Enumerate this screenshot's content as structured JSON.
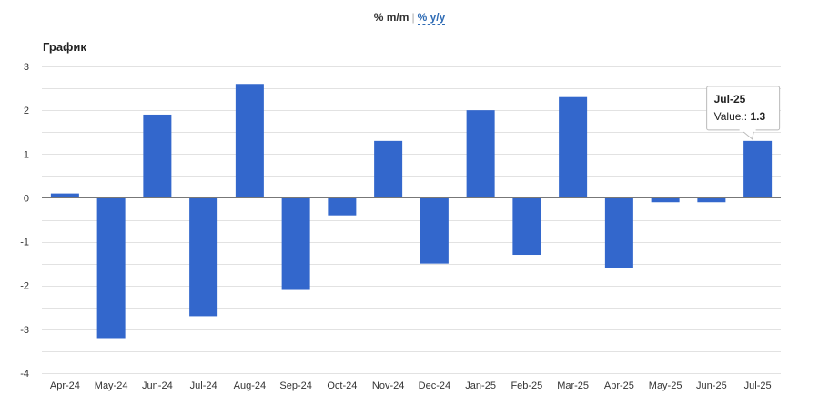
{
  "toggle": {
    "active_label": "% m/m",
    "separator": "|",
    "link_label": "% y/y"
  },
  "colors": {
    "bar": "#3367cc",
    "grid": "#e2e2e2",
    "zero_line": "#777777"
  },
  "chart_data": {
    "type": "bar",
    "title": "График",
    "categories": [
      "Apr-24",
      "May-24",
      "Jun-24",
      "Jul-24",
      "Aug-24",
      "Sep-24",
      "Oct-24",
      "Nov-24",
      "Dec-24",
      "Jan-25",
      "Feb-25",
      "Mar-25",
      "Apr-25",
      "May-25",
      "Jun-25",
      "Jul-25"
    ],
    "values": [
      0.1,
      -3.2,
      1.9,
      -2.7,
      2.6,
      -2.1,
      -0.4,
      1.3,
      -1.5,
      2.0,
      -1.3,
      2.3,
      -1.6,
      -0.1,
      -0.1,
      1.3
    ],
    "ylim": [
      -4,
      3
    ],
    "yticks": [
      "3",
      "2",
      "1",
      "0",
      "-1",
      "-2",
      "-3",
      "-4"
    ],
    "grid": true,
    "tooltip": {
      "category": "Jul-25",
      "label": "Value.:",
      "value": "1.3"
    }
  }
}
